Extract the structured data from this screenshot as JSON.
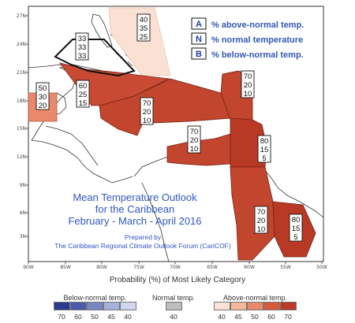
{
  "map": {
    "title_lines": [
      "Mean Temperature Outlook",
      "for the Caribbean",
      "February - March - April 2016"
    ],
    "prepared_lines": [
      "Prepared by",
      "The Caribbean Regional Climate Outlook Forum (CariCOF)"
    ],
    "lon_ticks": [
      "90W",
      "85W",
      "80W",
      "75W",
      "70W",
      "65W",
      "60W",
      "55W",
      "50W"
    ],
    "lat_ticks": [
      "27N",
      "24N",
      "21N",
      "18N",
      "15N",
      "12N",
      "9N",
      "6N",
      "3N"
    ],
    "legend": [
      {
        "letter": "A",
        "text": "% above-normal temp."
      },
      {
        "letter": "N",
        "text": "% normal temperature"
      },
      {
        "letter": "B",
        "text": "% below-normal temp."
      }
    ],
    "forecast_boxes": [
      {
        "A": "40",
        "N": "35",
        "B": "25"
      },
      {
        "A": "33",
        "N": "33",
        "B": "33"
      },
      {
        "A": "60",
        "N": "25",
        "B": "15"
      },
      {
        "A": "50",
        "N": "30",
        "B": "20"
      },
      {
        "A": "70",
        "N": "20",
        "B": "10"
      },
      {
        "A": "70",
        "N": "20",
        "B": "10"
      },
      {
        "A": "70",
        "N": "20",
        "B": "10"
      },
      {
        "A": "80",
        "N": "15",
        "B": "5"
      },
      {
        "A": "70",
        "N": "20",
        "B": "10"
      },
      {
        "A": "80",
        "N": "15",
        "B": "5"
      }
    ]
  },
  "colorbar": {
    "title": "Probability (%) of Most Likely Category",
    "groups": [
      {
        "label": "Below-normal temp.",
        "ticks": [
          "70",
          "60",
          "50",
          "45",
          "40"
        ],
        "colors": [
          "#2a3a8c",
          "#4a5aa8",
          "#7886c4",
          "#a7b0db",
          "#d2d7ef"
        ]
      },
      {
        "label": "Normal temp.",
        "ticks": [
          "40"
        ],
        "colors": [
          "#bdbdbd"
        ]
      },
      {
        "label": "Above-normal temp.",
        "ticks": [
          "40",
          "45",
          "50",
          "60",
          "70"
        ],
        "colors": [
          "#fbe1d6",
          "#f4b79b",
          "#e9886a",
          "#d65a3a",
          "#b93a25"
        ]
      }
    ]
  },
  "colors": {
    "above70": "#c2452e",
    "above80": "#b83a25",
    "above60": "#c84a32",
    "above50": "#e9886a",
    "above40": "#fbe0d4",
    "legend_text": "#3358b6"
  }
}
